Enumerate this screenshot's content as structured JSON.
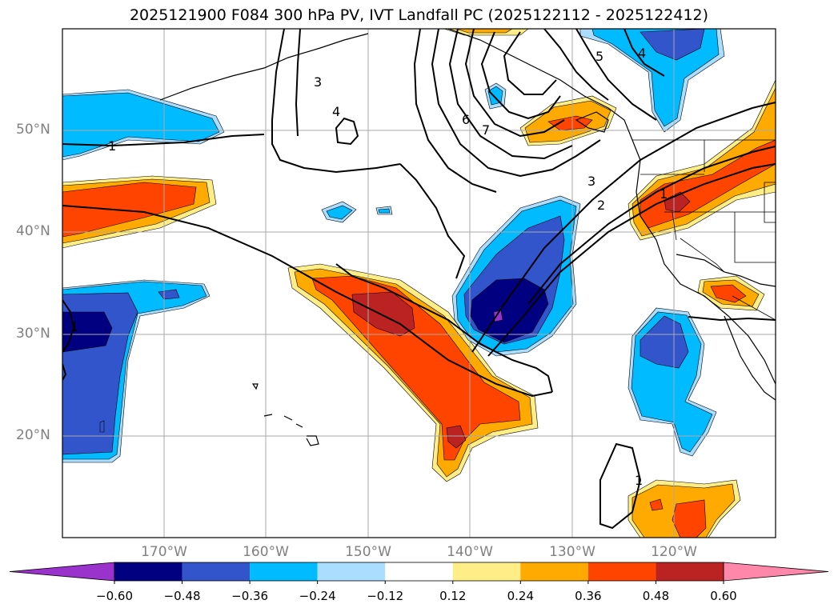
{
  "title": "2025121900 F084 300 hPa PV, IVT Landfall PC (2025122112 - 2025122412)",
  "lat_labels": [
    "50°N",
    "40°N",
    "30°N",
    "20°N"
  ],
  "lon_labels": [
    "170°W",
    "160°W",
    "150°W",
    "140°W",
    "130°W",
    "120°W"
  ],
  "colorbar": {
    "colors": [
      "#9933cc",
      "#000080",
      "#3355cc",
      "#00bbff",
      "#aaddff",
      "#ffffff",
      "#ffee88",
      "#ffaa00",
      "#ff4400",
      "#bb2222",
      "#ff88aa"
    ],
    "tick_labels": [
      "−0.60",
      "−0.48",
      "−0.36",
      "−0.24",
      "−0.12",
      "0.12",
      "0.24",
      "0.36",
      "0.48",
      "0.60"
    ]
  },
  "contour_labels": [
    "1",
    "3",
    "4",
    "6",
    "7",
    "5",
    "4",
    "3",
    "2",
    "1",
    "1",
    "1"
  ]
}
